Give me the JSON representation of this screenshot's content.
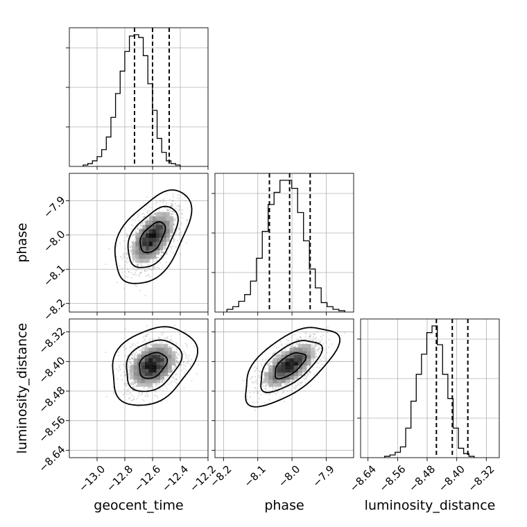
{
  "chart_data": {
    "type": "corner",
    "parameters": [
      {
        "label": "geocent_time",
        "range": [
          -13.2,
          -12.2
        ],
        "ticks": [
          -13.0,
          -12.8,
          -12.6,
          -12.4,
          -12.2
        ],
        "tick_labels": [
          "−13.0",
          "−12.8",
          "−12.6",
          "−12.4",
          "−12.2"
        ],
        "quantiles": [
          -12.73,
          -12.6,
          -12.48
        ]
      },
      {
        "label": "phase",
        "range": [
          -8.225,
          -7.82
        ],
        "ticks": [
          -8.2,
          -8.1,
          -8.0,
          -7.9
        ],
        "tick_labels": [
          "−8.2",
          "−8.1",
          "−8.0",
          "−7.9"
        ],
        "quantiles": [
          -8.066,
          -8.007,
          -7.947
        ]
      },
      {
        "label": "luminosity_distance",
        "range": [
          -8.66,
          -8.285
        ],
        "ticks": [
          -8.64,
          -8.56,
          -8.48,
          -8.4,
          -8.32
        ],
        "tick_labels": [
          "−8.64",
          "−8.56",
          "−8.48",
          "−8.40",
          "−8.32"
        ],
        "quantiles": [
          -8.455,
          -8.412,
          -8.37
        ]
      }
    ],
    "histograms": [
      {
        "parameter": "geocent_time",
        "bin_start": -13.1,
        "bin_width": 0.0333,
        "counts": [
          1,
          2,
          4,
          7,
          12,
          21,
          35,
          52,
          68,
          82,
          93,
          94,
          92,
          79,
          59,
          40,
          20,
          10,
          4,
          2,
          1
        ]
      },
      {
        "parameter": "phase",
        "bin_start": -8.19,
        "bin_width": 0.0172,
        "counts": [
          2,
          4,
          8,
          13,
          23,
          40,
          60,
          80,
          89,
          98,
          98,
          92,
          74,
          53,
          32,
          18,
          7,
          4,
          2,
          1
        ]
      },
      {
        "parameter": "luminosity_distance",
        "bin_start": -8.595,
        "bin_width": 0.01425,
        "counts": [
          1,
          2,
          4,
          8,
          22,
          42,
          62,
          77,
          93,
          98,
          84,
          62,
          44,
          22,
          7,
          3,
          1
        ]
      }
    ],
    "pairs": [
      {
        "x": "geocent_time",
        "y": "phase",
        "center": [
          -12.6,
          -8.007
        ],
        "sd": [
          0.09,
          0.045
        ],
        "rho": 0.5
      },
      {
        "x": "geocent_time",
        "y": "luminosity_distance",
        "center": [
          -12.6,
          -8.41
        ],
        "sd": [
          0.1,
          0.035
        ],
        "rho": 0.3
      },
      {
        "x": "phase",
        "y": "luminosity_distance",
        "center": [
          -8.007,
          -8.41
        ],
        "sd": [
          0.045,
          0.035
        ],
        "rho": 0.62
      }
    ],
    "contour_levels": [
      0.39,
      0.86,
      0.99
    ],
    "grid": true
  }
}
